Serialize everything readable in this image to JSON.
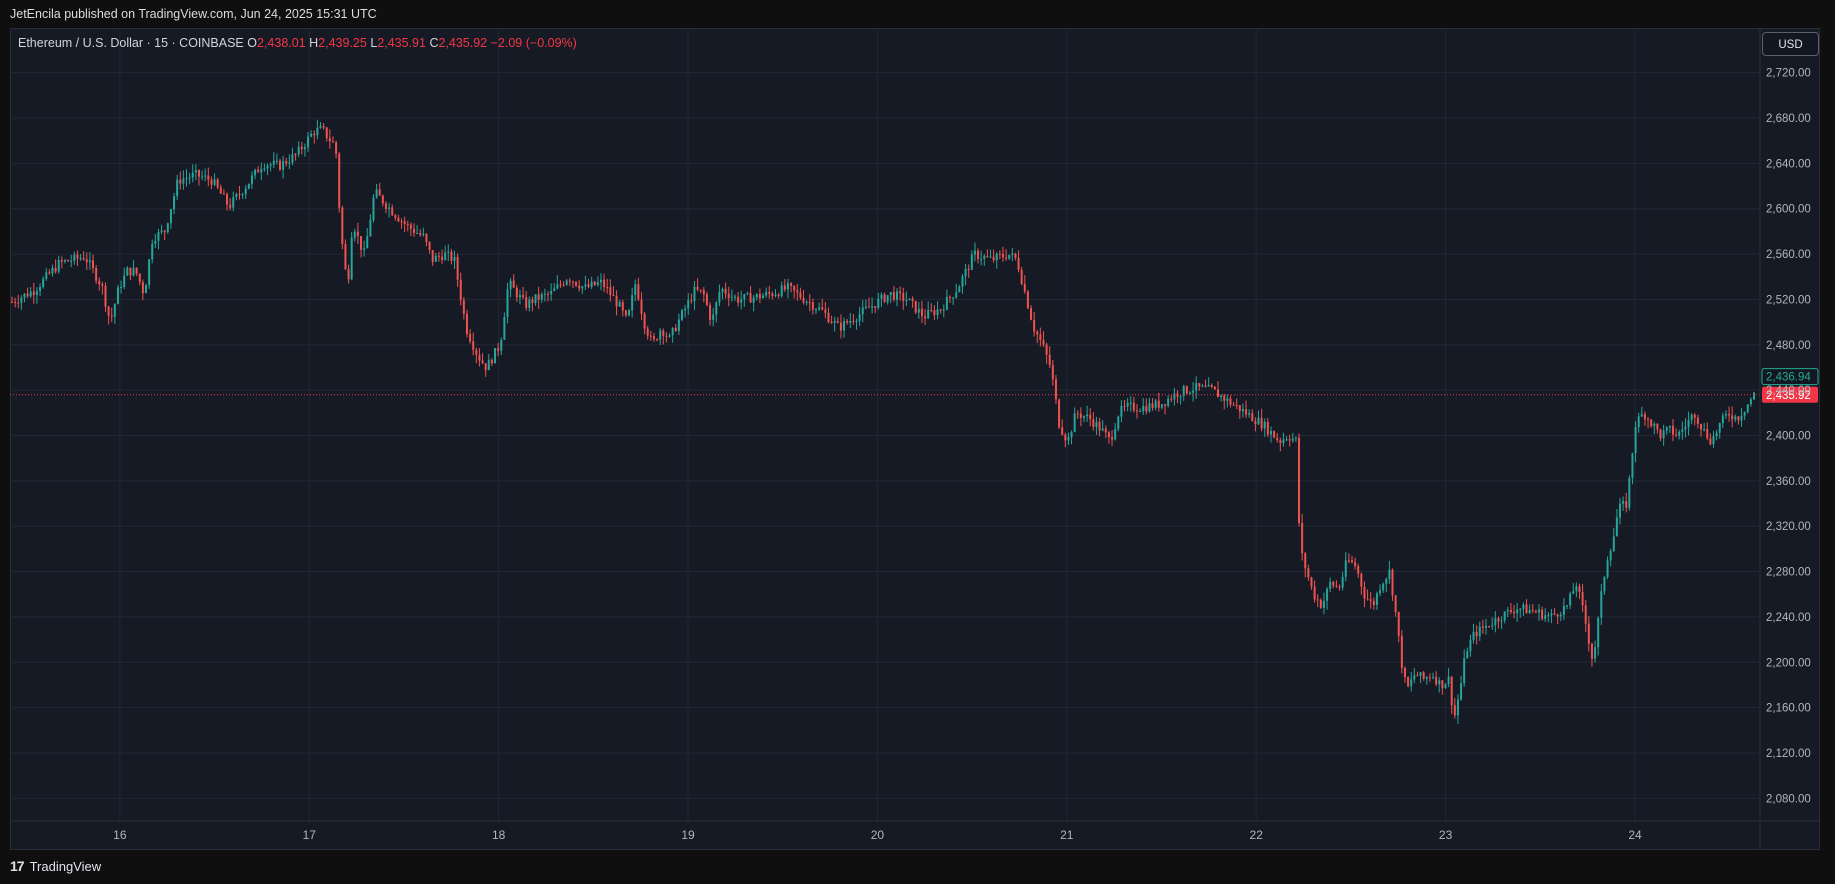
{
  "header": {
    "published": "JetEncila published on TradingView.com, Jun 24, 2025 15:31 UTC"
  },
  "legend": {
    "symbol": "Ethereum / U.S. Dollar · 15 · COINBASE",
    "o_label": "O",
    "o_value": "2,438.01",
    "h_label": "H",
    "h_value": "2,439.25",
    "l_label": "L",
    "l_value": "2,435.91",
    "c_label": "C",
    "c_value": "2,435.92",
    "change": "−2.09 (−0.09%)"
  },
  "currency_button": "USD",
  "brand": {
    "name": "TradingView",
    "logo": "17"
  },
  "colors": {
    "up": "#26a69a",
    "down": "#ef5350",
    "background": "#161a25",
    "grid": "#232734",
    "last_price": "#f23645",
    "prev_close": "#22ab94"
  },
  "chart_data": {
    "type": "candlestick",
    "symbol": "ETH/USD",
    "interval": "15",
    "exchange": "COINBASE",
    "ylim": [
      2060,
      2740
    ],
    "y_ticks": [
      "2,080.00",
      "2,120.00",
      "2,160.00",
      "2,200.00",
      "2,240.00",
      "2,280.00",
      "2,320.00",
      "2,360.00",
      "2,400.00",
      "2,440.00",
      "2,480.00",
      "2,520.00",
      "2,560.00",
      "2,600.00",
      "2,640.00",
      "2,680.00",
      "2,720.00"
    ],
    "y_tick_values": [
      2080,
      2120,
      2160,
      2200,
      2240,
      2280,
      2320,
      2360,
      2400,
      2440,
      2480,
      2520,
      2560,
      2600,
      2640,
      2680,
      2720
    ],
    "x_ticks": [
      "16",
      "17",
      "18",
      "19",
      "20",
      "21",
      "22",
      "23",
      "24"
    ],
    "x_tick_days": [
      16,
      17,
      18,
      19,
      20,
      21,
      22,
      23,
      24
    ],
    "x_range_days": [
      15.42,
      24.66
    ],
    "grid": true,
    "price_labels": [
      {
        "text": "2,436.94",
        "value": 2436.94,
        "style": "prev"
      },
      {
        "text": "2,435.92",
        "value": 2435.92,
        "style": "last"
      }
    ],
    "price_path": [
      [
        15.42,
        2518
      ],
      [
        15.55,
        2528
      ],
      [
        15.7,
        2552
      ],
      [
        15.85,
        2558
      ],
      [
        15.95,
        2532
      ],
      [
        16.0,
        2500
      ],
      [
        16.05,
        2530
      ],
      [
        16.1,
        2545
      ],
      [
        16.15,
        2545
      ],
      [
        16.2,
        2525
      ],
      [
        16.25,
        2575
      ],
      [
        16.32,
        2580
      ],
      [
        16.4,
        2625
      ],
      [
        16.5,
        2630
      ],
      [
        16.6,
        2625
      ],
      [
        16.7,
        2602
      ],
      [
        16.8,
        2620
      ],
      [
        16.9,
        2640
      ],
      [
        17.0,
        2638
      ],
      [
        17.1,
        2648
      ],
      [
        17.2,
        2668
      ],
      [
        17.25,
        2670
      ],
      [
        17.3,
        2660
      ],
      [
        17.33,
        2655
      ],
      [
        17.36,
        2580
      ],
      [
        17.38,
        2555
      ],
      [
        17.4,
        2530
      ],
      [
        17.43,
        2590
      ],
      [
        17.47,
        2570
      ],
      [
        17.5,
        2560
      ],
      [
        17.56,
        2615
      ],
      [
        17.65,
        2600
      ],
      [
        17.75,
        2585
      ],
      [
        17.85,
        2575
      ],
      [
        17.9,
        2555
      ],
      [
        17.97,
        2560
      ],
      [
        18.03,
        2555
      ],
      [
        18.1,
        2495
      ],
      [
        18.17,
        2470
      ],
      [
        18.22,
        2460
      ],
      [
        18.3,
        2480
      ],
      [
        18.35,
        2535
      ],
      [
        18.45,
        2515
      ],
      [
        18.5,
        2520
      ],
      [
        18.6,
        2525
      ],
      [
        18.7,
        2540
      ],
      [
        18.8,
        2530
      ],
      [
        18.9,
        2535
      ],
      [
        19.0,
        2515
      ],
      [
        19.05,
        2500
      ],
      [
        19.1,
        2535
      ],
      [
        19.15,
        2500
      ],
      [
        19.2,
        2480
      ],
      [
        19.25,
        2495
      ],
      [
        19.3,
        2485
      ],
      [
        19.35,
        2500
      ],
      [
        19.45,
        2528
      ],
      [
        19.5,
        2525
      ],
      [
        19.55,
        2500
      ],
      [
        19.6,
        2530
      ],
      [
        19.7,
        2520
      ],
      [
        19.8,
        2522
      ],
      [
        19.9,
        2525
      ],
      [
        20.0,
        2530
      ],
      [
        20.1,
        2520
      ],
      [
        20.2,
        2510
      ],
      [
        20.3,
        2495
      ],
      [
        20.4,
        2505
      ],
      [
        20.5,
        2515
      ],
      [
        20.6,
        2525
      ],
      [
        20.7,
        2520
      ],
      [
        20.8,
        2505
      ],
      [
        20.9,
        2512
      ],
      [
        21.0,
        2530
      ],
      [
        21.1,
        2560
      ],
      [
        21.2,
        2555
      ],
      [
        21.3,
        2560
      ],
      [
        21.35,
        2555
      ],
      [
        21.4,
        2525
      ],
      [
        21.45,
        2495
      ],
      [
        21.5,
        2480
      ],
      [
        21.55,
        2460
      ],
      [
        21.6,
        2410
      ],
      [
        21.65,
        2395
      ],
      [
        21.7,
        2420
      ],
      [
        21.78,
        2415
      ],
      [
        21.85,
        2405
      ],
      [
        21.9,
        2395
      ],
      [
        21.95,
        2420
      ],
      [
        22.0,
        2425
      ],
      [
        22.1,
        2425
      ],
      [
        22.2,
        2428
      ],
      [
        22.3,
        2438
      ],
      [
        22.4,
        2442
      ],
      [
        22.5,
        2440
      ],
      [
        22.6,
        2430
      ],
      [
        22.7,
        2420
      ],
      [
        22.8,
        2410
      ],
      [
        22.9,
        2395
      ],
      [
        22.95,
        2400
      ],
      [
        23.0,
        2395
      ],
      [
        23.02,
        2300
      ],
      [
        23.05,
        2285
      ],
      [
        23.1,
        2260
      ],
      [
        23.15,
        2250
      ],
      [
        23.2,
        2270
      ],
      [
        23.25,
        2265
      ],
      [
        23.3,
        2290
      ],
      [
        23.35,
        2285
      ],
      [
        23.4,
        2260
      ],
      [
        23.45,
        2250
      ],
      [
        23.5,
        2270
      ],
      [
        23.55,
        2280
      ],
      [
        23.58,
        2250
      ],
      [
        23.62,
        2200
      ],
      [
        23.65,
        2175
      ],
      [
        23.7,
        2190
      ],
      [
        23.75,
        2185
      ],
      [
        23.8,
        2190
      ],
      [
        23.85,
        2180
      ],
      [
        23.9,
        2185
      ],
      [
        23.93,
        2150
      ],
      [
        23.97,
        2180
      ],
      [
        24.0,
        2210
      ],
      [
        24.05,
        2225
      ],
      [
        24.1,
        2230
      ],
      [
        24.2,
        2240
      ],
      [
        24.3,
        2248
      ],
      [
        24.4,
        2245
      ],
      [
        24.5,
        2240
      ],
      [
        24.6,
        2250
      ],
      [
        24.65,
        2270
      ],
      [
        24.7,
        2240
      ],
      [
        24.75,
        2200
      ],
      [
        24.8,
        2260
      ],
      [
        24.83,
        2290
      ],
      [
        24.87,
        2310
      ],
      [
        24.9,
        2335
      ],
      [
        24.95,
        2340
      ],
      [
        25.0,
        2410
      ],
      [
        25.05,
        2420
      ],
      [
        25.1,
        2410
      ],
      [
        25.15,
        2400
      ],
      [
        25.2,
        2405
      ],
      [
        25.25,
        2400
      ],
      [
        25.3,
        2410
      ],
      [
        25.35,
        2420
      ],
      [
        25.4,
        2405
      ],
      [
        25.45,
        2395
      ],
      [
        25.5,
        2410
      ],
      [
        25.55,
        2420
      ],
      [
        25.6,
        2415
      ],
      [
        25.65,
        2425
      ],
      [
        25.7,
        2436
      ]
    ]
  }
}
